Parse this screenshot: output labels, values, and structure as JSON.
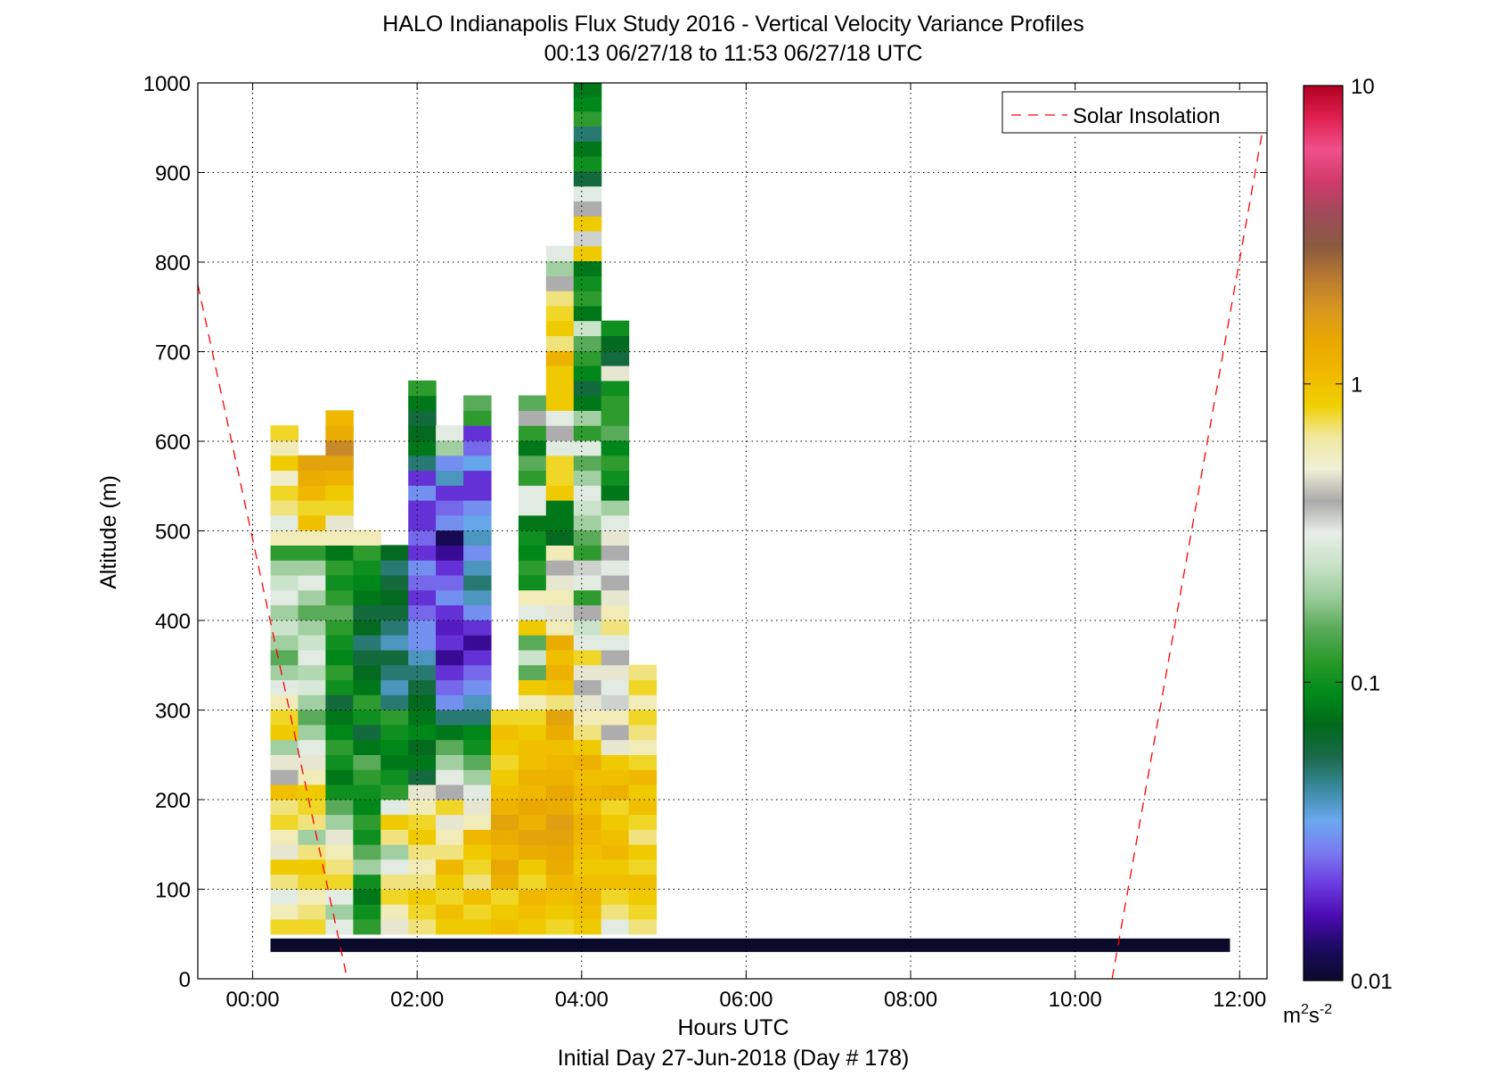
{
  "chart_data": {
    "type": "heatmap",
    "title": "HALO Indianapolis Flux Study 2016 - Vertical Velocity Variance Profiles",
    "subtitle": "00:13 06/27/18 to 11:53 06/27/18  UTC",
    "xlabel": "Hours UTC",
    "xlabel2": "Initial Day 27-Jun-2018 (Day # 178)",
    "ylabel": "Altitude (m)",
    "xlim": [
      -0.667,
      12.333
    ],
    "ylim": [
      0,
      1000
    ],
    "xticks": [
      {
        "v": 0,
        "label": "00:00"
      },
      {
        "v": 2,
        "label": "02:00"
      },
      {
        "v": 4,
        "label": "04:00"
      },
      {
        "v": 6,
        "label": "06:00"
      },
      {
        "v": 8,
        "label": "08:00"
      },
      {
        "v": 10,
        "label": "10:00"
      },
      {
        "v": 12,
        "label": "12:00"
      }
    ],
    "yticks": [
      0,
      100,
      200,
      300,
      400,
      500,
      600,
      700,
      800,
      900,
      1000
    ],
    "grid": true,
    "legend": {
      "position": "top-right",
      "entries": [
        {
          "name": "Solar Insolation",
          "style": "dashed",
          "color": "#ff0000"
        }
      ]
    },
    "colorbar": {
      "scale": "log",
      "range": [
        0.01,
        10
      ],
      "ticks": [
        {
          "v": 0.01,
          "label": "0.01"
        },
        {
          "v": 0.1,
          "label": "0.1"
        },
        {
          "v": 1,
          "label": "1"
        },
        {
          "v": 10,
          "label": "10"
        }
      ],
      "unit_base": "m",
      "unit_sup1": "2",
      "unit_mid": "s",
      "unit_sup2": "-2",
      "stops": [
        "#0a0a2a",
        "#1a0a60",
        "#4a0ab0",
        "#6a3ae0",
        "#7a7af0",
        "#6aa8f0",
        "#3a8aa0",
        "#1a6a4a",
        "#006a1a",
        "#008a1a",
        "#2a9a2a",
        "#5aaa5a",
        "#9acc9a",
        "#c8e2c8",
        "#e8eee8",
        "#aaaaaa",
        "#f0f0d8",
        "#f0e8a0",
        "#f0d000",
        "#f0b800",
        "#e8a800",
        "#d89820",
        "#b87830",
        "#8a5a40",
        "#a04a5a",
        "#d03a6a",
        "#f0508a",
        "#e02050",
        "#b00020"
      ]
    },
    "solar_insolation": {
      "x": [
        -0.667,
        1.15,
        10.45,
        12.333
      ],
      "y": [
        775,
        0,
        0,
        975
      ]
    },
    "bottom_band": {
      "x0": 0.217,
      "x1": 11.883,
      "y0": 30,
      "y1": 45,
      "value": 0.01
    },
    "columns": {
      "x0": 0.217,
      "dx": 0.335,
      "y0": 50,
      "dy": 16.7,
      "profiles": [
        [
          0.8,
          0.6,
          0.3,
          0.7,
          0.9,
          0.5,
          0.6,
          0.8,
          0.7,
          1.0,
          0.4,
          0.5,
          0.2,
          0.9,
          0.8,
          0.6,
          0.3,
          0.2,
          0.15,
          0.2,
          0.25,
          0.2,
          0.3,
          0.25,
          0.2,
          0.12,
          0.6,
          0.3,
          0.7,
          0.8,
          0.55,
          0.9,
          0.6,
          0.8
        ],
        [
          0.8,
          0.7,
          0.6,
          0.8,
          0.9,
          0.7,
          0.2,
          0.7,
          0.8,
          0.9,
          0.6,
          0.5,
          0.3,
          0.2,
          0.15,
          0.2,
          0.28,
          0.22,
          0.3,
          0.25,
          0.2,
          0.15,
          0.2,
          0.3,
          0.2,
          0.12,
          0.6,
          1.0,
          0.8,
          1.1,
          1.3,
          1.5
        ],
        [
          0.3,
          0.2,
          0.3,
          0.8,
          0.7,
          0.6,
          0.5,
          0.2,
          0.15,
          0.1,
          0.08,
          0.1,
          0.12,
          0.09,
          0.08,
          0.06,
          0.1,
          0.12,
          0.09,
          0.1,
          0.12,
          0.15,
          0.12,
          0.1,
          0.12,
          0.08,
          0.6,
          0.5,
          0.8,
          0.9,
          1.2,
          1.5,
          2.0,
          1.3,
          1.1
        ],
        [
          0.12,
          0.1,
          0.08,
          0.1,
          0.2,
          0.15,
          0.1,
          0.12,
          0.09,
          0.1,
          0.12,
          0.15,
          0.08,
          0.06,
          0.1,
          0.12,
          0.08,
          0.07,
          0.06,
          0.05,
          0.07,
          0.06,
          0.08,
          0.09,
          0.1,
          0.12,
          0.6
        ],
        [
          0.5,
          0.6,
          0.8,
          0.7,
          0.3,
          0.2,
          0.7,
          0.9,
          0.3,
          0.12,
          0.1,
          0.08,
          0.09,
          0.1,
          0.12,
          0.05,
          0.04,
          0.05,
          0.06,
          0.04,
          0.05,
          0.06,
          0.07,
          0.06,
          0.05,
          0.07
        ],
        [
          0.7,
          0.8,
          0.9,
          0.7,
          0.6,
          0.7,
          0.9,
          0.8,
          0.6,
          0.5,
          0.06,
          0.08,
          0.07,
          0.09,
          0.08,
          0.07,
          0.06,
          0.05,
          0.04,
          0.03,
          0.03,
          0.025,
          0.02,
          0.025,
          0.03,
          0.02,
          0.025,
          0.02,
          0.02,
          0.03,
          0.02,
          0.05,
          0.08,
          0.07,
          0.06,
          0.08,
          0.12
        ],
        [
          0.9,
          1.0,
          0.8,
          0.9,
          1.1,
          0.7,
          0.6,
          0.5,
          0.8,
          0.4,
          0.3,
          0.2,
          0.15,
          0.08,
          0.05,
          0.03,
          0.025,
          0.02,
          0.015,
          0.02,
          0.018,
          0.02,
          0.03,
          0.025,
          0.02,
          0.015,
          0.012,
          0.03,
          0.025,
          0.02,
          0.04,
          0.03,
          0.2,
          0.3
        ],
        [
          0.9,
          0.8,
          1.0,
          0.7,
          0.8,
          0.9,
          1.1,
          0.6,
          0.5,
          0.3,
          0.2,
          0.15,
          0.1,
          0.09,
          0.05,
          0.04,
          0.03,
          0.025,
          0.02,
          0.015,
          0.02,
          0.03,
          0.04,
          0.05,
          0.04,
          0.03,
          0.04,
          0.035,
          0.03,
          0.02,
          0.02,
          0.035,
          0.025,
          0.02,
          0.12,
          0.15
        ],
        [
          1.0,
          0.9,
          0.8,
          1.2,
          1.4,
          1.1,
          1.3,
          1.5,
          1.2,
          1.0,
          0.9,
          0.8,
          0.9,
          1.0,
          0.8
        ],
        [
          0.9,
          1.0,
          1.1,
          0.8,
          0.9,
          1.3,
          1.5,
          1.2,
          1.4,
          1.1,
          1.2,
          1.0,
          1.0,
          0.9,
          0.8,
          0.6,
          0.9,
          0.15,
          0.25,
          0.15,
          0.9,
          0.3,
          0.6,
          0.1,
          0.12,
          0.09,
          0.1,
          0.08,
          0.3,
          0.3,
          0.12,
          0.15,
          0.08,
          0.12,
          0.4,
          0.15
        ],
        [
          0.8,
          0.9,
          1.0,
          1.1,
          1.3,
          1.4,
          1.5,
          1.6,
          1.3,
          1.4,
          1.2,
          1.1,
          1.0,
          1.3,
          1.5,
          0.7,
          1.0,
          1.2,
          1.0,
          1.3,
          0.6,
          0.5,
          0.6,
          0.5,
          0.4,
          0.6,
          0.07,
          0.08,
          0.08,
          0.9,
          0.8,
          0.8,
          0.3,
          0.4,
          0.3,
          0.9,
          0.9,
          0.9,
          1.2,
          0.7,
          0.9,
          0.8,
          0.7,
          0.4,
          0.2,
          0.3
        ],
        [
          0.9,
          1.0,
          1.1,
          1.0,
          0.9,
          1.0,
          1.1,
          1.2,
          1.0,
          1.1,
          1.0,
          1.2,
          0.9,
          0.7,
          0.6,
          0.5,
          0.4,
          0.5,
          0.8,
          0.3,
          0.25,
          0.4,
          0.12,
          0.3,
          0.35,
          0.12,
          0.15,
          0.2,
          0.25,
          0.3,
          0.2,
          0.15,
          0.3,
          0.12,
          0.2,
          0.08,
          0.06,
          0.09,
          0.12,
          0.15,
          0.25,
          0.08,
          0.12,
          0.1,
          0.08,
          0.9,
          0.35,
          0.9,
          0.4,
          0.3,
          0.06,
          0.1,
          0.08,
          0.05,
          0.12,
          0.09,
          0.08
        ],
        [
          0.3,
          0.7,
          0.8,
          1.0,
          0.9,
          1.1,
          1.0,
          0.9,
          0.8,
          1.2,
          1.0,
          0.9,
          0.5,
          0.4,
          0.6,
          0.35,
          0.3,
          0.5,
          0.4,
          0.3,
          0.7,
          0.6,
          0.5,
          0.4,
          0.3,
          0.4,
          0.5,
          0.3,
          0.2,
          0.08,
          0.1,
          0.12,
          0.09,
          0.15,
          0.12,
          0.12,
          0.1,
          0.5,
          0.06,
          0.07,
          0.1
        ],
        [
          0.7,
          0.8,
          0.9,
          1.0,
          0.8,
          0.9,
          0.7,
          0.8,
          1.0,
          0.9,
          1.1,
          0.8,
          0.6,
          0.7,
          0.8,
          0.6,
          0.8,
          0.7
        ]
      ]
    }
  }
}
